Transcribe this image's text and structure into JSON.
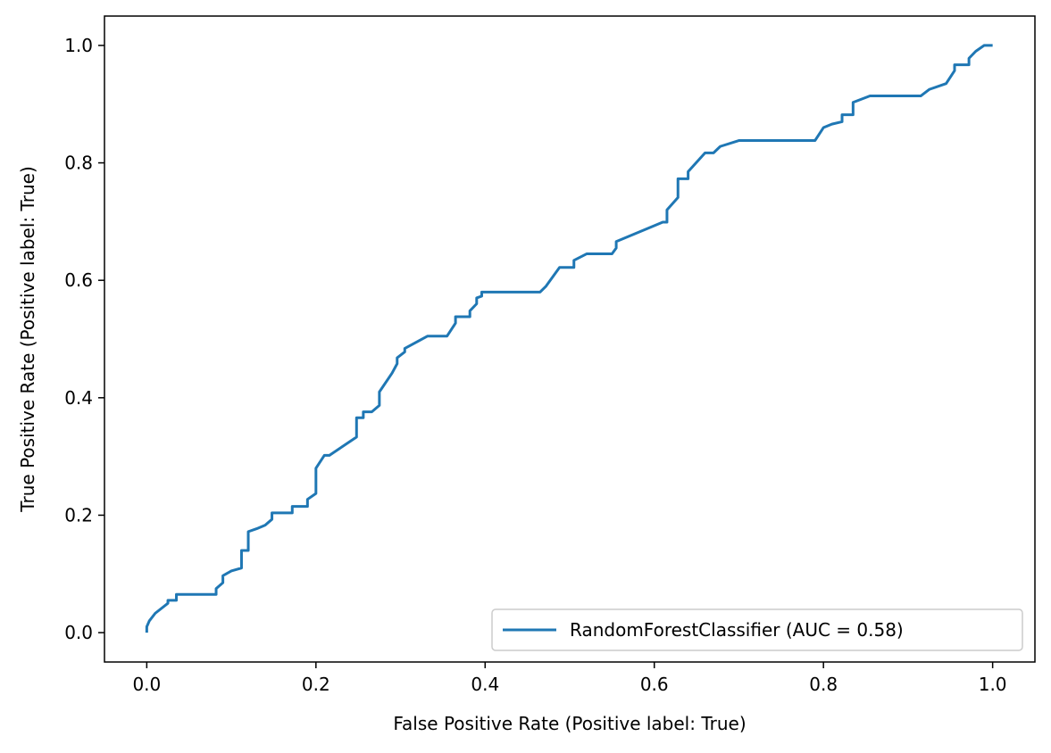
{
  "chart_data": {
    "type": "line",
    "xlabel": "False Positive Rate (Positive label: True)",
    "ylabel": "True Positive Rate (Positive label: True)",
    "xlim": [
      -0.05,
      1.05
    ],
    "ylim": [
      -0.05,
      1.05
    ],
    "xticks": [
      "0.0",
      "0.2",
      "0.4",
      "0.6",
      "0.8",
      "1.0"
    ],
    "yticks": [
      "0.0",
      "0.2",
      "0.4",
      "0.6",
      "0.8",
      "1.0"
    ],
    "grid": false,
    "legend_position": "bottom-right",
    "colors": {
      "series": "#1f77b4",
      "axes": "#000000",
      "legend_border": "#cccccc"
    },
    "series": [
      {
        "name": "RandomForestClassifier (AUC = 0.58)",
        "x": [
          0.0,
          0.0,
          0.003,
          0.01,
          0.025,
          0.025,
          0.035,
          0.035,
          0.082,
          0.082,
          0.09,
          0.09,
          0.1,
          0.112,
          0.112,
          0.12,
          0.12,
          0.13,
          0.14,
          0.148,
          0.148,
          0.172,
          0.172,
          0.19,
          0.19,
          0.2,
          0.2,
          0.21,
          0.216,
          0.248,
          0.248,
          0.256,
          0.256,
          0.266,
          0.275,
          0.275,
          0.29,
          0.296,
          0.296,
          0.305,
          0.305,
          0.332,
          0.355,
          0.365,
          0.365,
          0.382,
          0.382,
          0.39,
          0.39,
          0.396,
          0.396,
          0.42,
          0.465,
          0.472,
          0.488,
          0.505,
          0.505,
          0.52,
          0.55,
          0.555,
          0.555,
          0.61,
          0.615,
          0.615,
          0.628,
          0.628,
          0.64,
          0.64,
          0.66,
          0.67,
          0.678,
          0.7,
          0.79,
          0.8,
          0.8,
          0.81,
          0.822,
          0.822,
          0.835,
          0.835,
          0.855,
          0.9,
          0.915,
          0.915,
          0.925,
          0.945,
          0.955,
          0.955,
          0.972,
          0.972,
          0.98,
          0.98,
          0.99,
          1.0
        ],
        "y": [
          0.0,
          0.01,
          0.02,
          0.033,
          0.05,
          0.055,
          0.055,
          0.065,
          0.065,
          0.075,
          0.085,
          0.097,
          0.105,
          0.11,
          0.14,
          0.14,
          0.172,
          0.177,
          0.183,
          0.193,
          0.204,
          0.204,
          0.215,
          0.215,
          0.227,
          0.237,
          0.28,
          0.302,
          0.302,
          0.333,
          0.366,
          0.366,
          0.376,
          0.376,
          0.387,
          0.41,
          0.442,
          0.458,
          0.468,
          0.478,
          0.484,
          0.505,
          0.505,
          0.527,
          0.538,
          0.538,
          0.548,
          0.56,
          0.57,
          0.573,
          0.58,
          0.58,
          0.58,
          0.59,
          0.622,
          0.622,
          0.634,
          0.645,
          0.645,
          0.655,
          0.666,
          0.699,
          0.699,
          0.72,
          0.741,
          0.773,
          0.773,
          0.785,
          0.817,
          0.817,
          0.828,
          0.838,
          0.838,
          0.86,
          0.86,
          0.866,
          0.87,
          0.882,
          0.882,
          0.903,
          0.914,
          0.914,
          0.914,
          0.914,
          0.925,
          0.935,
          0.957,
          0.967,
          0.967,
          0.978,
          0.99,
          0.99,
          1.0,
          1.0
        ]
      }
    ]
  }
}
